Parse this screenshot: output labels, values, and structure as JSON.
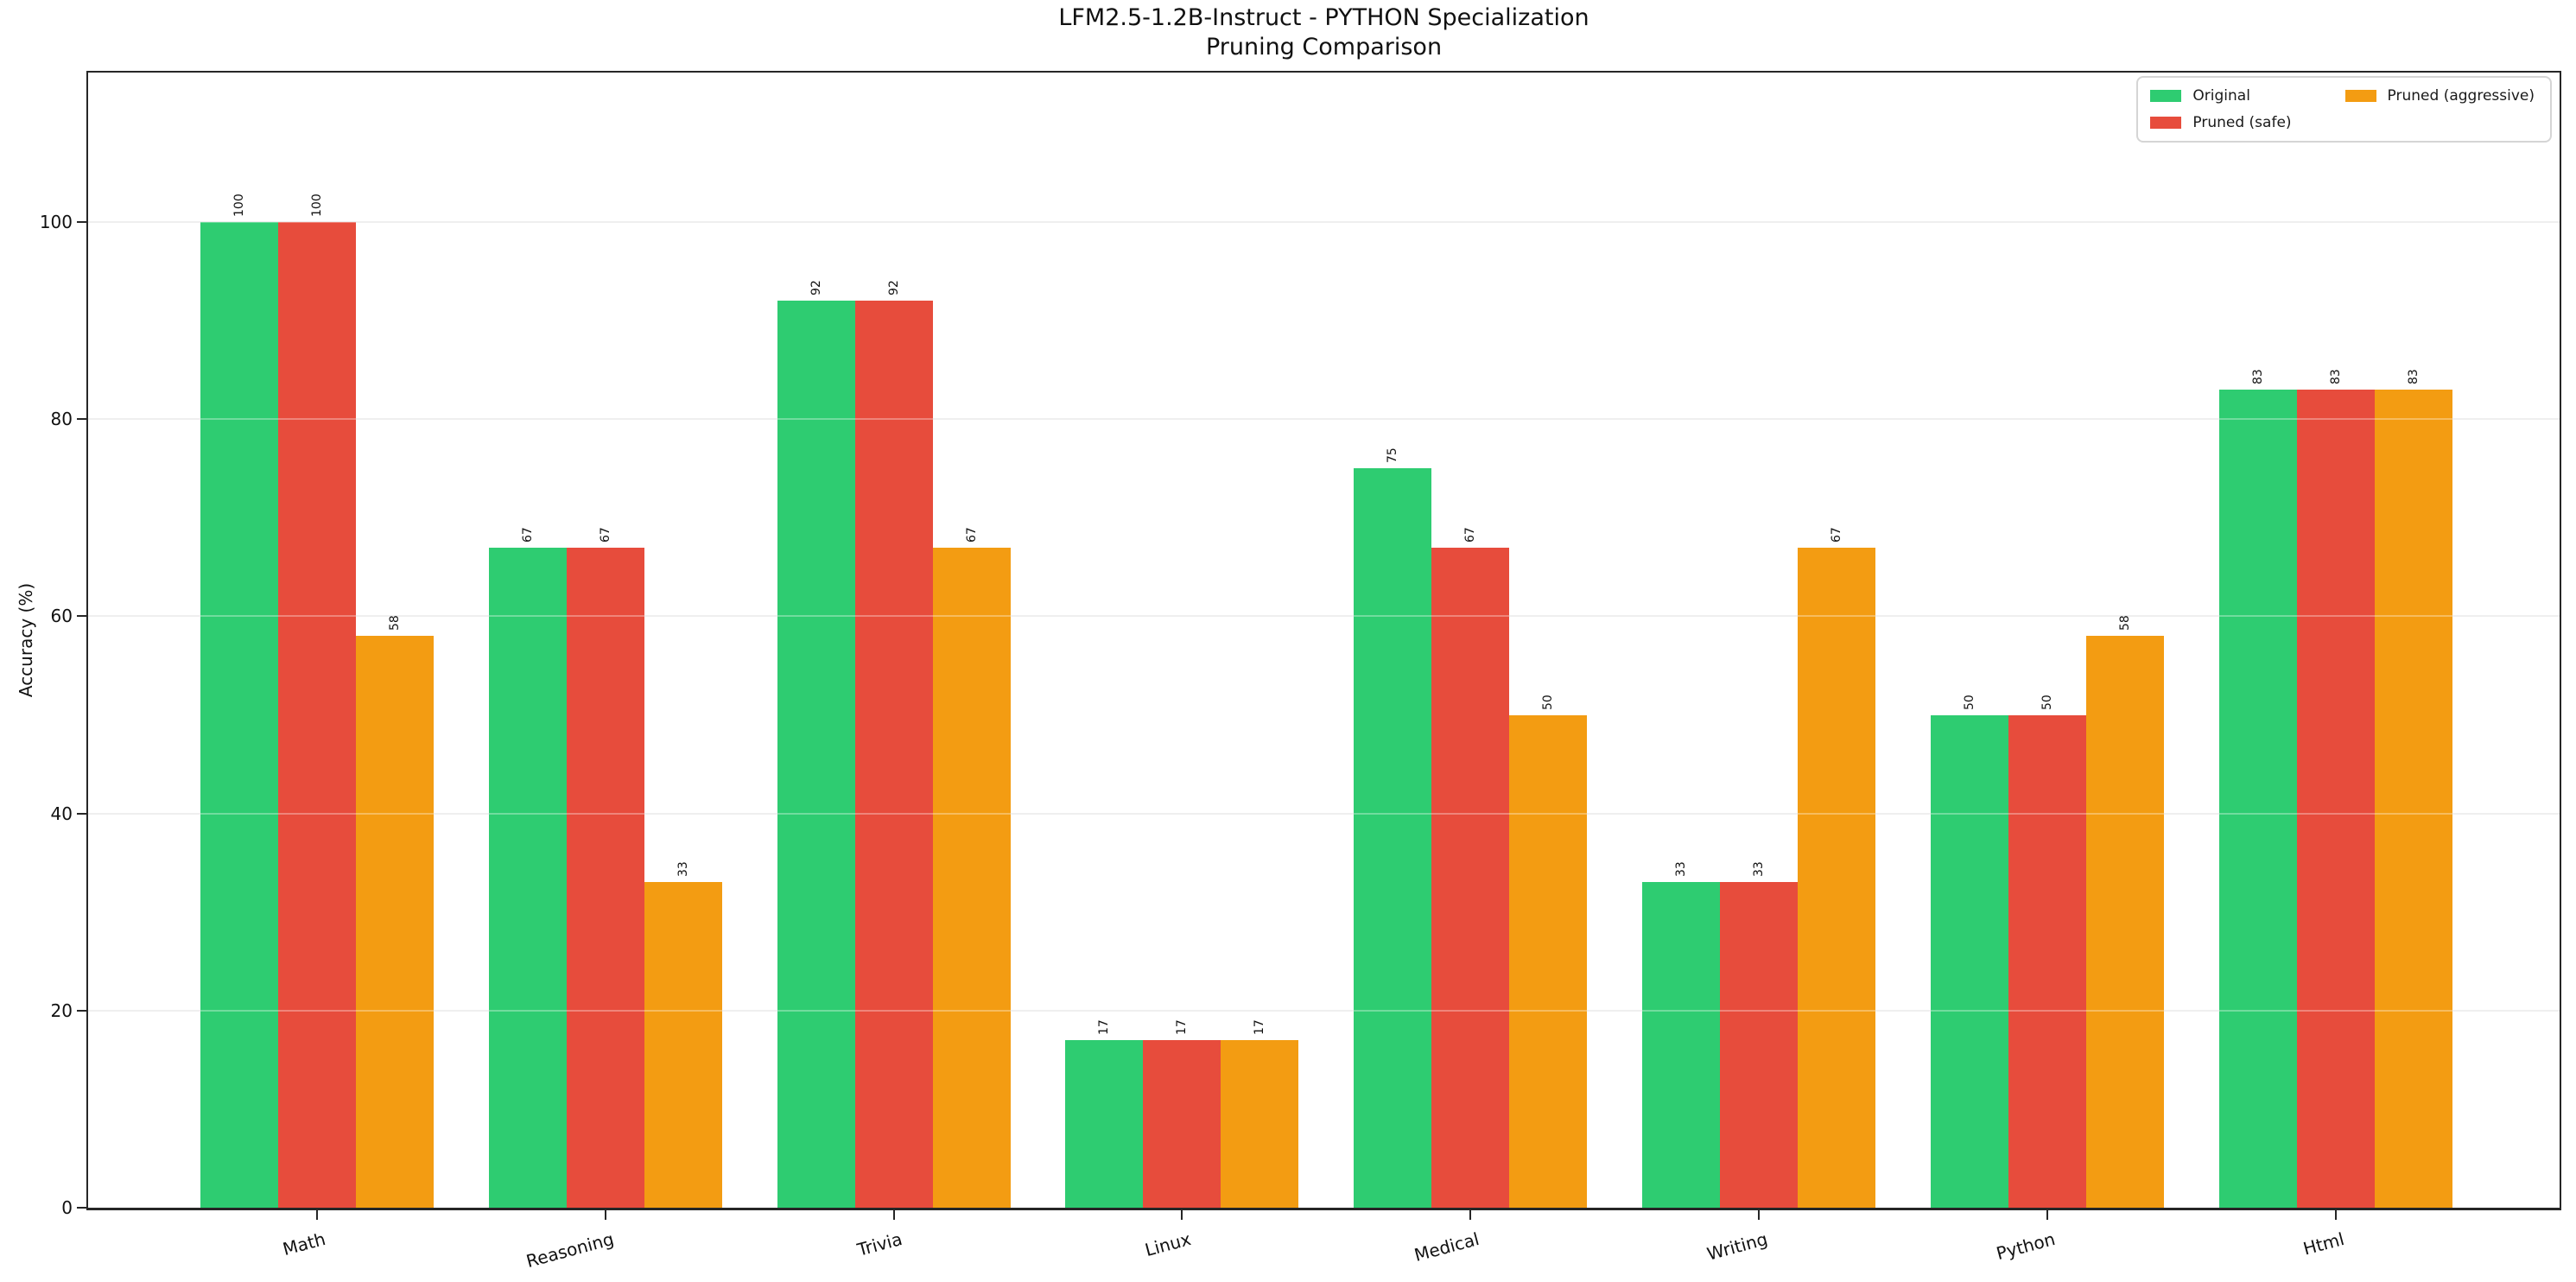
{
  "figure": {
    "title": "LFM2.5-1.2B-Instruct - PYTHON Specialization",
    "subtitle": "Pruning Comparison"
  },
  "chart_data": {
    "type": "bar",
    "title": "LFM2.5-1.2B-Instruct - PYTHON Specialization",
    "subtitle": "Pruning Comparison",
    "xlabel": "",
    "ylabel": "Accuracy (%)",
    "categories": [
      "Math",
      "Reasoning",
      "Trivia",
      "Linux",
      "Medical",
      "Writing",
      "Python",
      "Html"
    ],
    "series": [
      {
        "name": "Original",
        "color": "#2ecc71",
        "values": [
          100,
          67,
          92,
          17,
          75,
          33,
          50,
          83
        ]
      },
      {
        "name": "Pruned (safe)",
        "color": "#e74c3c",
        "values": [
          100,
          67,
          92,
          17,
          67,
          33,
          50,
          83
        ]
      },
      {
        "name": "Pruned (aggressive)",
        "color": "#f39c12",
        "values": [
          58,
          33,
          67,
          17,
          50,
          67,
          58,
          83
        ]
      }
    ],
    "bar_value_labels": true,
    "value_label_rotation_deg": 90,
    "yticks": [
      0,
      20,
      40,
      60,
      80,
      100
    ],
    "ylim": [
      0,
      115
    ],
    "grid": "horizontal-light",
    "grid_color": "#e7e7e7",
    "axis_color": "#262626",
    "legend": {
      "position": "upper-right",
      "rows": 2,
      "entries": [
        "Original",
        "Pruned (safe)",
        "Pruned (aggressive)"
      ]
    }
  }
}
